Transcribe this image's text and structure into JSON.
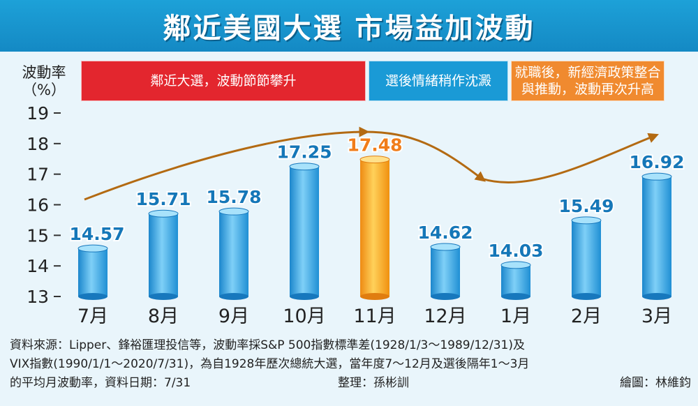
{
  "title": "鄰近美國大選 市場益加波動",
  "phases": [
    {
      "label": "鄰近大選，波動節節攀升",
      "color": "#e3262e"
    },
    {
      "label": "選後情緒稍作沈澱",
      "color": "#1a9ad6"
    },
    {
      "label": "就職後，新經濟政策整合與推動，波動再次升高",
      "color": "#f08a2f"
    }
  ],
  "chart_data": {
    "type": "bar",
    "ylabel": "波動率（%）",
    "ylabel_lines": [
      "波動率",
      "（%）"
    ],
    "categories": [
      "7月",
      "8月",
      "9月",
      "10月",
      "11月",
      "12月",
      "1月",
      "2月",
      "3月"
    ],
    "values": [
      14.57,
      15.71,
      15.78,
      17.25,
      17.48,
      14.62,
      14.03,
      15.49,
      16.92
    ],
    "value_labels": [
      "14.57",
      "15.71",
      "15.78",
      "17.25",
      "17.48",
      "14.62",
      "14.03",
      "15.49",
      "16.92"
    ],
    "highlight_index": 4,
    "ylim": [
      13,
      19
    ],
    "yticks": [
      "13",
      "14",
      "15",
      "16",
      "17",
      "18",
      "19"
    ],
    "trend_arrow": true,
    "colors": {
      "bar": "#2a9fde",
      "highlight": "#f5a623",
      "label": "#1577b8",
      "highlight_label": "#f07d1a",
      "arrow": "#b36a12"
    }
  },
  "footer": {
    "line1": "資料來源：Lipper、鋒裕匯理投信等，波動率採S&P 500指數標準差(1928/1/3～1989/12/31)及",
    "line2": "VIX指數(1990/1/1～2020/7/31)，為自1928年歷次總統大選，當年度7～12月及選後隔年1～3月",
    "line3": "的平均月波動率，資料日期：7/31",
    "editor": "整理：孫彬訓",
    "illustrator": "繪圖：林維鈞"
  }
}
